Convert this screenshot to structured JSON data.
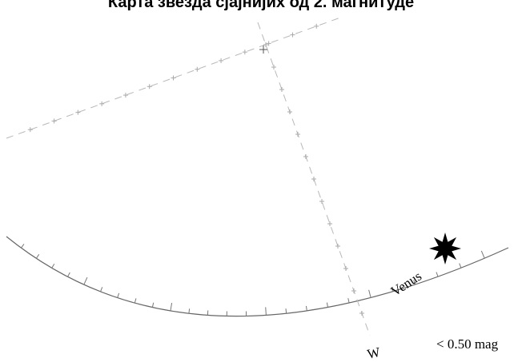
{
  "title": "Карта звезда сјајнијих од 2. магнитуде",
  "objects": [
    {
      "name": "Venus",
      "kind": "planet",
      "symbol": "star-burst-icon"
    }
  ],
  "direction_label": "W",
  "magnitude_note": "< 0.50 mag",
  "colors": {
    "background": "#ffffff",
    "horizon": "#666666",
    "grid": "#b0b0b0",
    "symbol": "#000000"
  }
}
